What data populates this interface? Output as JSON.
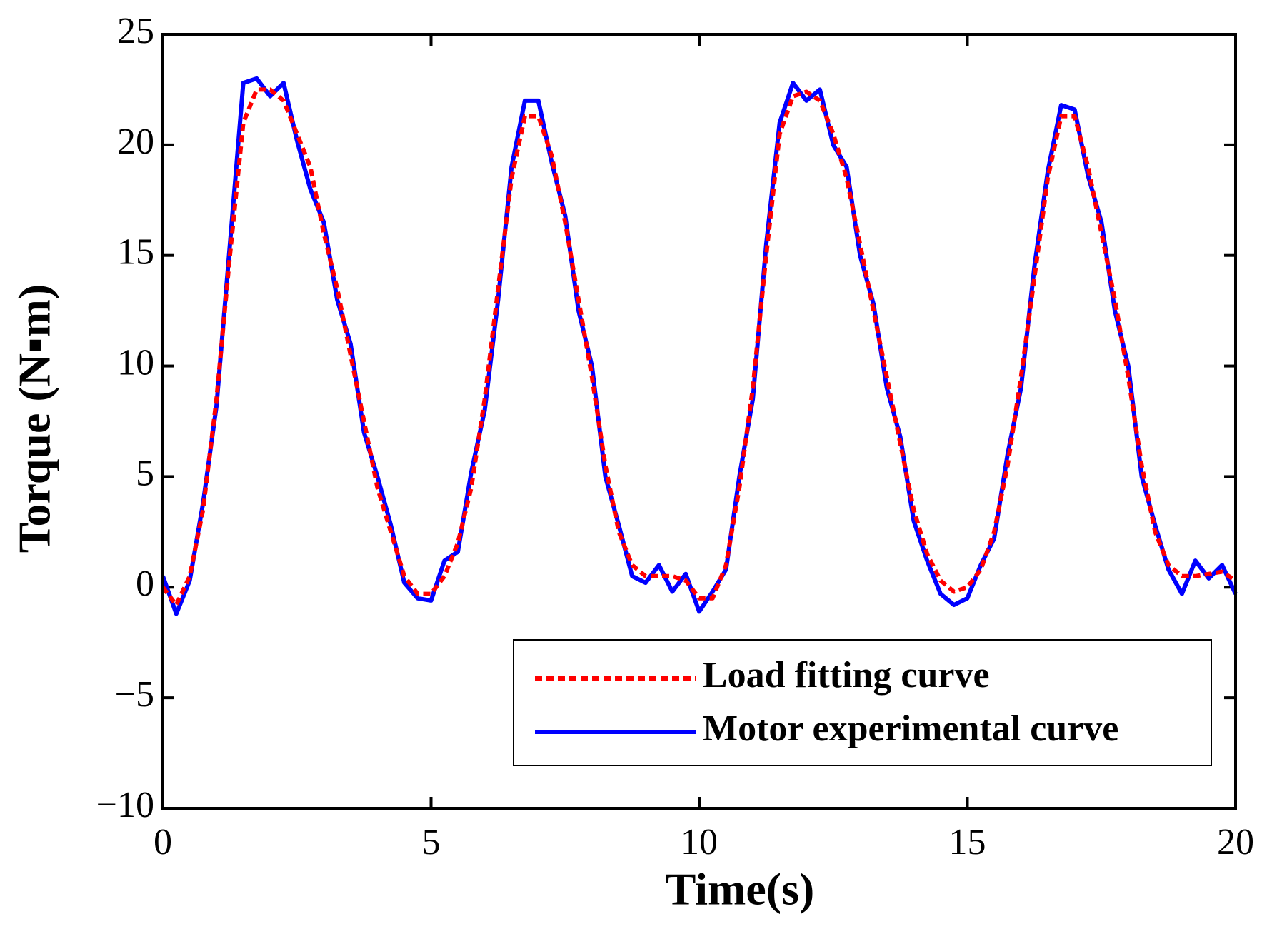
{
  "chart_data": {
    "type": "line",
    "xlabel": "Time(s)",
    "ylabel": "Torque (N▪m)",
    "x": [
      0,
      0.25,
      0.5,
      0.75,
      1,
      1.25,
      1.5,
      1.75,
      2,
      2.25,
      2.5,
      2.75,
      3,
      3.25,
      3.5,
      3.75,
      4,
      4.25,
      4.5,
      4.75,
      5,
      5.25,
      5.5,
      5.75,
      6,
      6.25,
      6.5,
      6.75,
      7,
      7.25,
      7.5,
      7.75,
      8,
      8.25,
      8.5,
      8.75,
      9,
      9.25,
      9.5,
      9.75,
      10,
      10.25,
      10.5,
      10.75,
      11,
      11.25,
      11.5,
      11.75,
      12,
      12.25,
      12.5,
      12.75,
      13,
      13.25,
      13.5,
      13.75,
      14,
      14.25,
      14.5,
      14.75,
      15,
      15.25,
      15.5,
      15.75,
      16,
      16.25,
      16.5,
      16.75,
      17,
      17.25,
      17.5,
      17.75,
      18,
      18.25,
      18.5,
      18.75,
      19,
      19.25,
      19.5,
      19.75,
      20
    ],
    "series": [
      {
        "name": "Load fitting curve",
        "color": "#ff0000",
        "dash": true,
        "values": [
          0,
          -0.8,
          0.5,
          3.5,
          8.5,
          15,
          21,
          22.5,
          22.5,
          22,
          20.5,
          19,
          16,
          13.5,
          10.5,
          7.5,
          4.5,
          2.5,
          0.5,
          -0.3,
          -0.3,
          0.5,
          2,
          4.5,
          8.5,
          13.5,
          18.5,
          21.3,
          21.3,
          19.5,
          16.5,
          13,
          9.5,
          5.5,
          2.5,
          1,
          0.5,
          0.5,
          0.5,
          0.3,
          -0.5,
          -0.5,
          1,
          4.5,
          9,
          15,
          20.5,
          22.2,
          22.4,
          22,
          20.5,
          18.5,
          15.5,
          12.5,
          9.5,
          6.5,
          3.5,
          1.5,
          0.3,
          -0.2,
          0,
          0.8,
          2.5,
          5.5,
          9.5,
          14,
          18.5,
          21.3,
          21.3,
          19,
          16,
          13,
          9.5,
          5.5,
          2.5,
          1,
          0.5,
          0.5,
          0.6,
          0.7,
          0.3
        ]
      },
      {
        "name": "Motor experimental curve",
        "color": "#0000ff",
        "dash": false,
        "values": [
          0.5,
          -1.2,
          0.3,
          3.8,
          8.2,
          15.5,
          22.8,
          23,
          22.2,
          22.8,
          20.2,
          18,
          16.5,
          13,
          11,
          7,
          5,
          2.8,
          0.2,
          -0.5,
          -0.6,
          1.2,
          1.6,
          5.2,
          8,
          13,
          19,
          22,
          22,
          19.2,
          16.8,
          12.5,
          10,
          5,
          2.8,
          0.5,
          0.2,
          1,
          -0.2,
          0.6,
          -1.1,
          -0.2,
          0.8,
          5,
          8.5,
          15.5,
          21,
          22.8,
          22,
          22.5,
          20,
          19,
          15,
          12.8,
          9,
          6.8,
          3,
          1.2,
          -0.3,
          -0.8,
          -0.5,
          1,
          2.2,
          6,
          9,
          14.5,
          18.8,
          21.8,
          21.6,
          18.6,
          16.5,
          12.5,
          10,
          5,
          2.8,
          0.8,
          -0.3,
          1.2,
          0.4,
          1,
          -0.3
        ]
      }
    ],
    "xlim": [
      0,
      20
    ],
    "xticks": [
      0,
      5,
      10,
      15,
      20
    ],
    "ylim": [
      -10,
      25
    ],
    "yticks": [
      {
        "value": -10,
        "label": "−10"
      },
      {
        "value": -5,
        "label": "−5"
      },
      0,
      5,
      10,
      15,
      20,
      25
    ],
    "grid": false,
    "legend": "lower right"
  }
}
